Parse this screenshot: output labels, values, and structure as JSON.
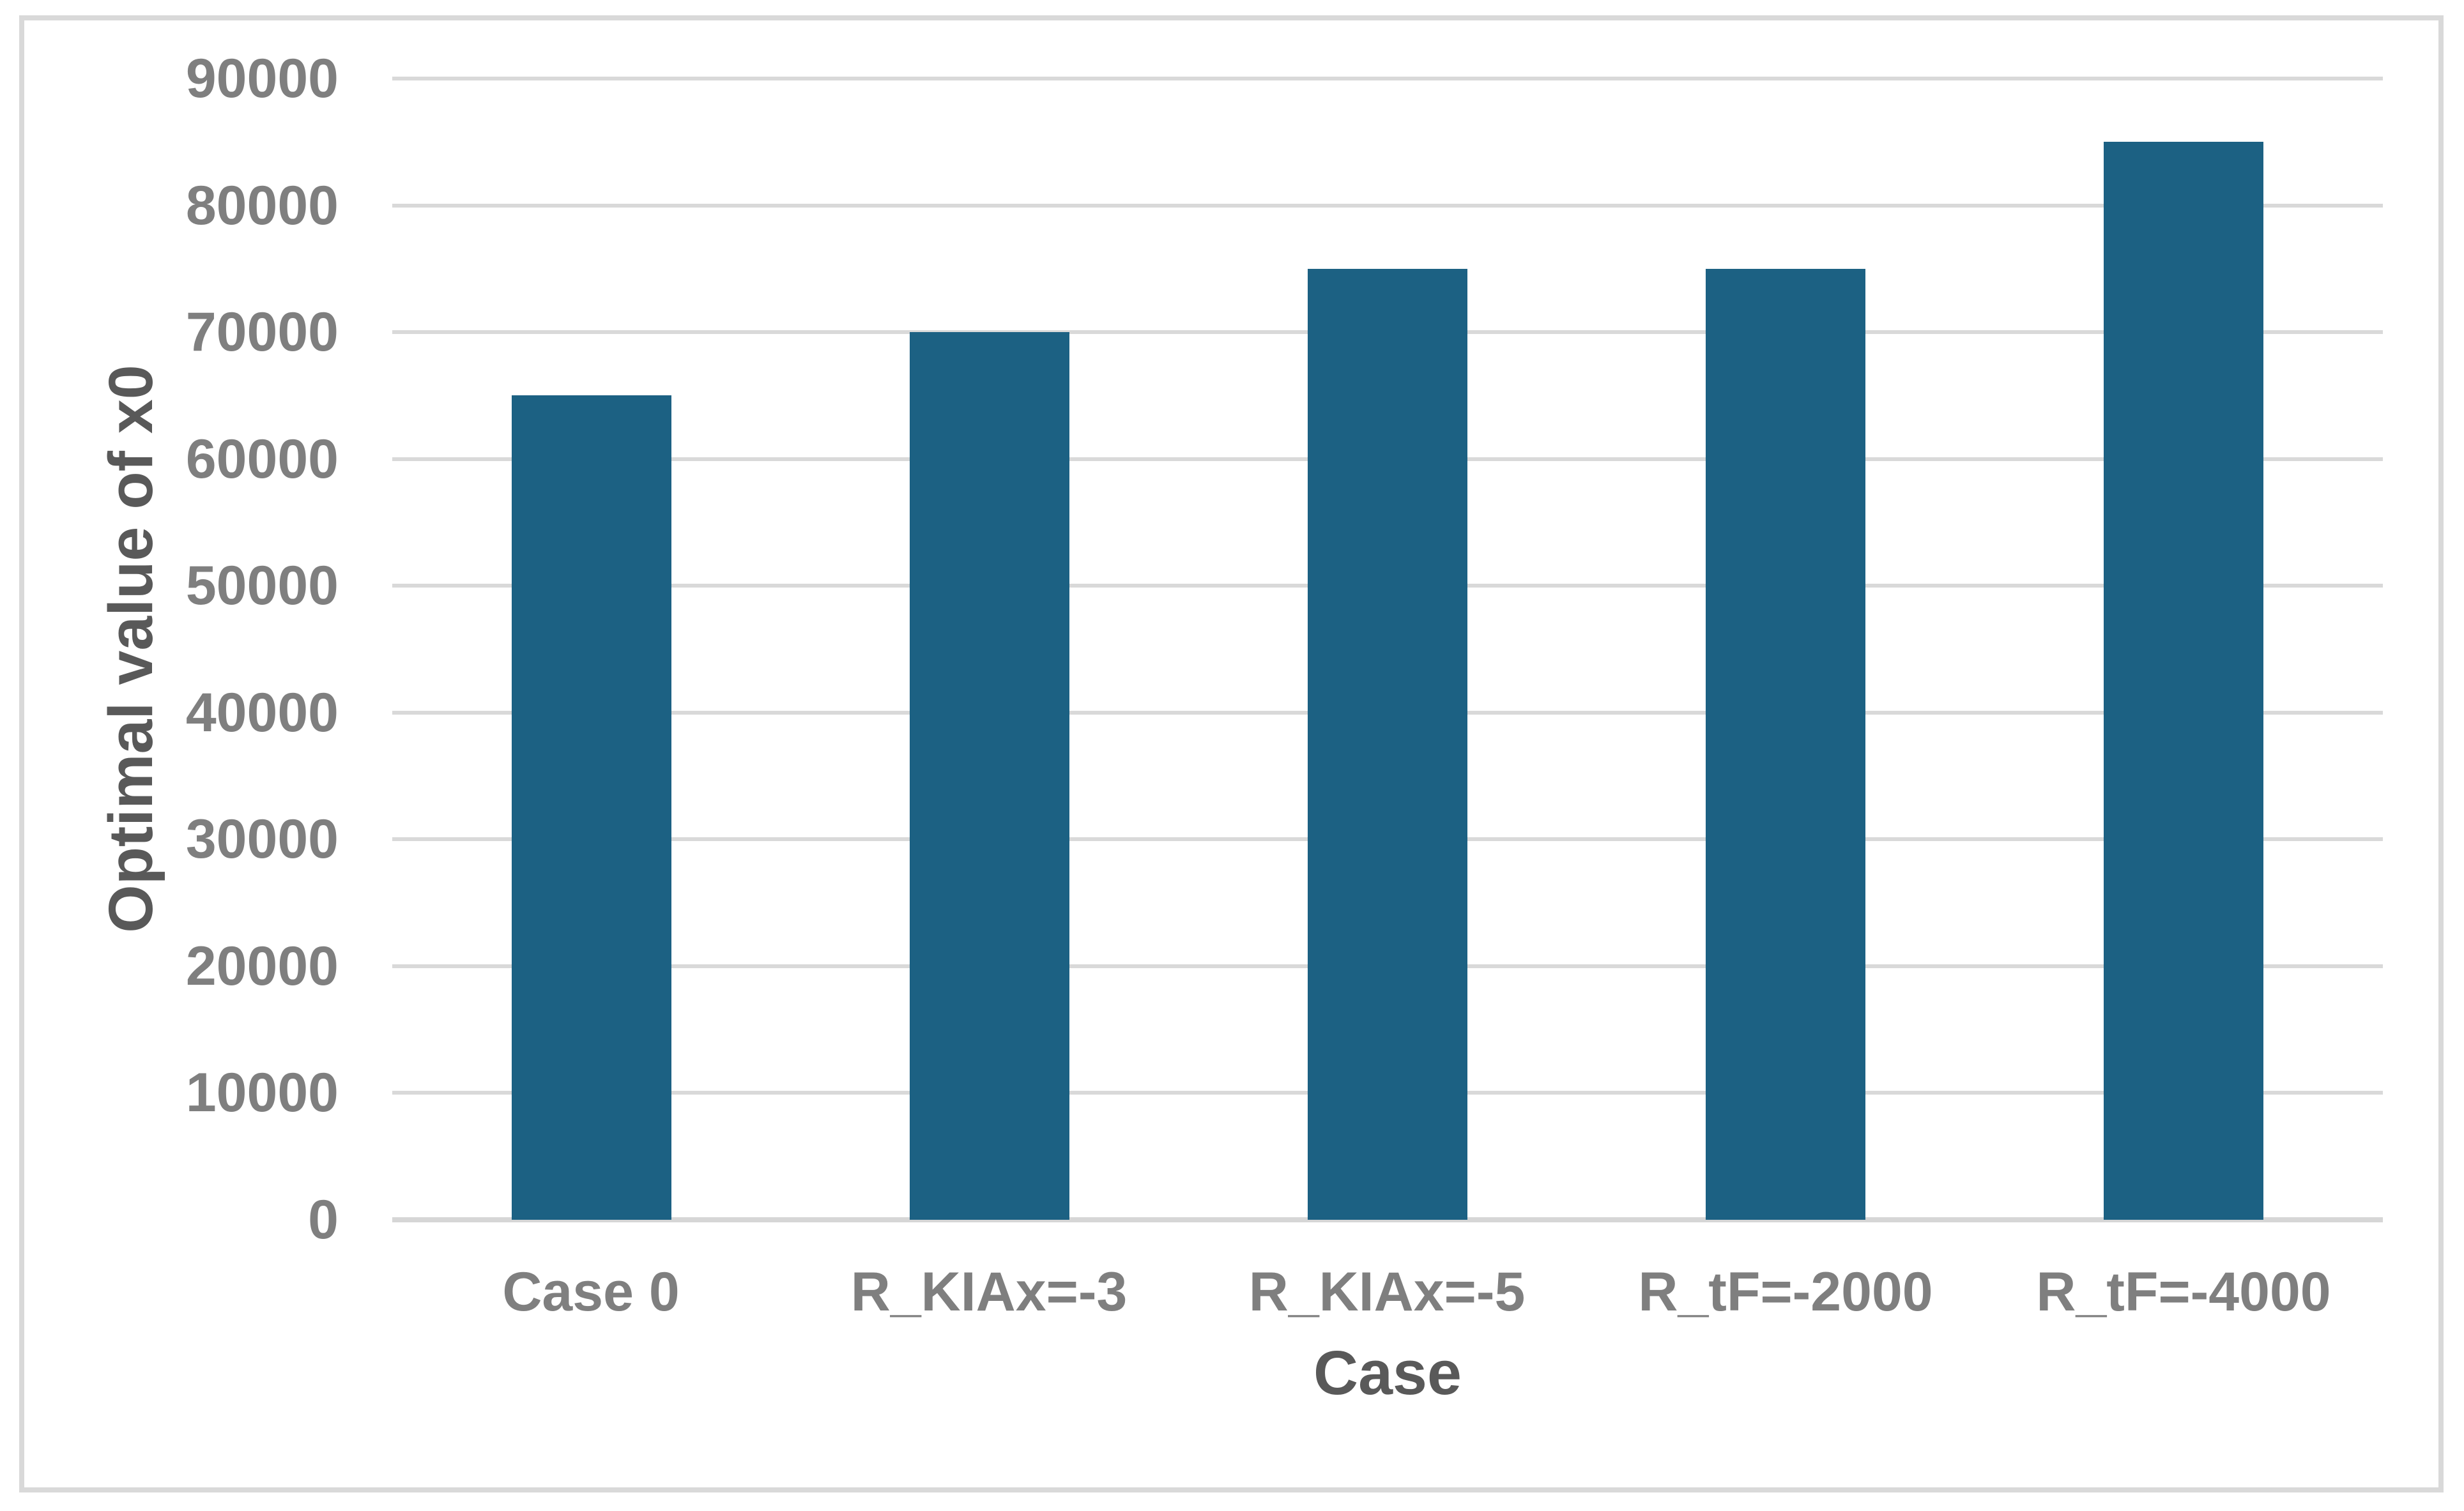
{
  "chart_data": {
    "type": "bar",
    "title": "",
    "categories": [
      "Case 0",
      "R_KIAx=-3",
      "R_KIAx=-5",
      "R_tF=-2000",
      "R_tF=-4000"
    ],
    "values": [
      65000,
      70000,
      75000,
      75000,
      85000
    ],
    "series": [
      {
        "name": "Optimal value of x0",
        "values": [
          65000,
          70000,
          75000,
          75000,
          85000
        ]
      }
    ],
    "xlabel": "Case",
    "ylabel": "Optimal value of x0",
    "ylim": [
      0,
      90000
    ],
    "ytick_step": 10000,
    "ytick_labels": [
      "0",
      "10000",
      "20000",
      "30000",
      "40000",
      "50000",
      "60000",
      "70000",
      "80000",
      "90000"
    ],
    "grid": true,
    "legend_position": "none",
    "colors": {
      "bar": "#1C6183",
      "gridline": "#D9D9D9",
      "axis_line": "#D6D6D6",
      "tick_label": "#7F7F7F",
      "category_label": "#7F7F7F",
      "axis_title": "#595959",
      "chart_border": "#D9D9D9",
      "background": "#FFFFFF"
    }
  }
}
